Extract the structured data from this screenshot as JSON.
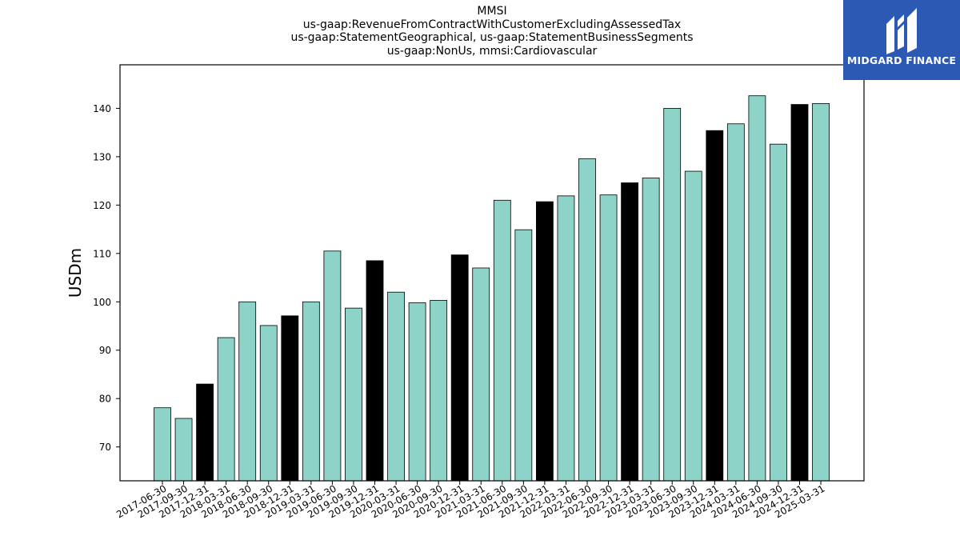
{
  "chart_data": {
    "type": "bar",
    "title_lines": [
      "MMSI",
      "us-gaap:RevenueFromContractWithCustomerExcludingAssessedTax",
      "us-gaap:StatementGeographical, us-gaap:StatementBusinessSegments",
      "us-gaap:NonUs, mmsi:Cardiovascular"
    ],
    "ylabel": "USDm",
    "ylim": [
      63,
      149
    ],
    "yticks": [
      70,
      80,
      90,
      100,
      110,
      120,
      130,
      140
    ],
    "grid": false,
    "categories": [
      "2017-06-30",
      "2017-09-30",
      "2017-12-31",
      "2018-03-31",
      "2018-06-30",
      "2018-09-30",
      "2018-12-31",
      "2019-03-31",
      "2019-06-30",
      "2019-09-30",
      "2019-12-31",
      "2020-03-31",
      "2020-06-30",
      "2020-09-30",
      "2020-12-31",
      "2021-03-31",
      "2021-06-30",
      "2021-09-30",
      "2021-12-31",
      "2022-03-31",
      "2022-06-30",
      "2022-09-30",
      "2022-12-31",
      "2023-03-31",
      "2023-06-30",
      "2023-09-30",
      "2023-12-31",
      "2024-03-31",
      "2024-06-30",
      "2024-09-30",
      "2024-12-31",
      "2025-03-31"
    ],
    "values": [
      78.1,
      75.9,
      83.0,
      92.6,
      100.0,
      95.1,
      97.1,
      100.0,
      110.5,
      98.7,
      108.5,
      102.0,
      99.8,
      100.3,
      109.7,
      107.0,
      121.0,
      114.9,
      120.7,
      121.9,
      129.6,
      122.1,
      124.6,
      125.6,
      140.0,
      127.0,
      135.4,
      136.8,
      142.6,
      132.6,
      140.8,
      141.0
    ],
    "colors": {
      "quarter": "#8dd3c7",
      "year_end": "#000000",
      "edge": "#000000"
    }
  },
  "logo": {
    "brand": "MIDGARD FINANCE"
  }
}
